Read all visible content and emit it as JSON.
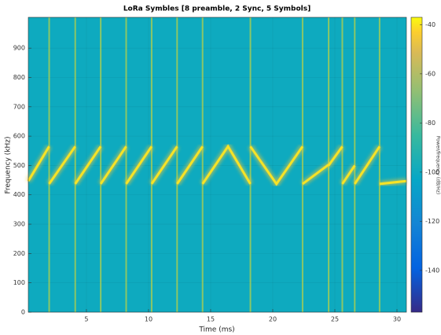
{
  "chart_data": {
    "type": "spectrogram",
    "title": "LoRa Symbles [8 preamble, 2 Sync, 5 Symbols]",
    "xlabel": "Time (ms)",
    "ylabel": "Frequency (kHz)",
    "colorbar_label": "Power/frequency (dB/Hz)",
    "colormap": "parula",
    "background_level": -100,
    "xlim": [
      0.32,
      30.76
    ],
    "ylim": [
      0,
      1005
    ],
    "xticks": [
      5,
      10,
      15,
      20,
      25,
      30
    ],
    "yticks": [
      0,
      100,
      200,
      300,
      400,
      500,
      600,
      700,
      800,
      900
    ],
    "clim": [
      -157,
      -37
    ],
    "cticks": [
      -40,
      -60,
      -80,
      -100,
      -120,
      -140
    ],
    "grid": true,
    "color": "#f6e326",
    "x": [
      0.32,
      2.0,
      2.0,
      2.0,
      4.1,
      4.1,
      4.1,
      6.15,
      6.15,
      6.15,
      8.2,
      8.2,
      8.2,
      10.25,
      10.25,
      10.25,
      12.3,
      12.3,
      12.3,
      14.35,
      14.35,
      14.35,
      16.4,
      18.2,
      18.2,
      18.2,
      20.3,
      22.4,
      22.4,
      22.4,
      24.5,
      24.5,
      24.5,
      25.6,
      25.6,
      25.6,
      26.6,
      26.6,
      26.6,
      28.6,
      28.6,
      28.6,
      30.76
    ],
    "values": [
      447,
      565,
      null,
      437,
      565,
      null,
      437,
      565,
      null,
      437,
      565,
      null,
      437,
      565,
      null,
      437,
      565,
      null,
      437,
      565,
      null,
      437,
      565,
      437,
      null,
      565,
      437,
      565,
      null,
      437,
      503,
      null,
      500,
      565,
      null,
      437,
      500,
      null,
      437,
      565,
      null,
      437,
      447
    ]
  }
}
